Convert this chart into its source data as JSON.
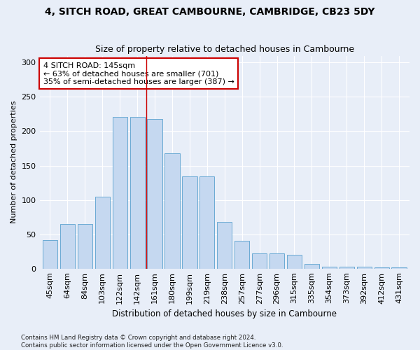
{
  "title": "4, SITCH ROAD, GREAT CAMBOURNE, CAMBRIDGE, CB23 5DY",
  "subtitle": "Size of property relative to detached houses in Cambourne",
  "xlabel": "Distribution of detached houses by size in Cambourne",
  "ylabel": "Number of detached properties",
  "categories": [
    "45sqm",
    "64sqm",
    "84sqm",
    "103sqm",
    "122sqm",
    "142sqm",
    "161sqm",
    "180sqm",
    "199sqm",
    "219sqm",
    "238sqm",
    "257sqm",
    "277sqm",
    "296sqm",
    "315sqm",
    "335sqm",
    "354sqm",
    "373sqm",
    "392sqm",
    "412sqm",
    "431sqm"
  ],
  "values": [
    41,
    65,
    65,
    105,
    221,
    221,
    218,
    168,
    134,
    134,
    68,
    40,
    22,
    22,
    20,
    7,
    3,
    3,
    3,
    2,
    2
  ],
  "bar_color": "#c5d8f0",
  "bar_edgecolor": "#6aaad4",
  "bg_color": "#e8eef8",
  "grid_color": "#ffffff",
  "vline_color": "#cc0000",
  "annotation_text": "4 SITCH ROAD: 145sqm\n← 63% of detached houses are smaller (701)\n35% of semi-detached houses are larger (387) →",
  "annotation_box_color": "white",
  "annotation_box_edgecolor": "#cc0000",
  "footnote": "Contains HM Land Registry data © Crown copyright and database right 2024.\nContains public sector information licensed under the Open Government Licence v3.0.",
  "ylim": [
    0,
    310
  ],
  "yticks": [
    0,
    50,
    100,
    150,
    200,
    250,
    300
  ],
  "title_fontsize": 10,
  "subtitle_fontsize": 9,
  "xlabel_fontsize": 8.5,
  "ylabel_fontsize": 8,
  "tick_fontsize": 8,
  "annot_fontsize": 8
}
